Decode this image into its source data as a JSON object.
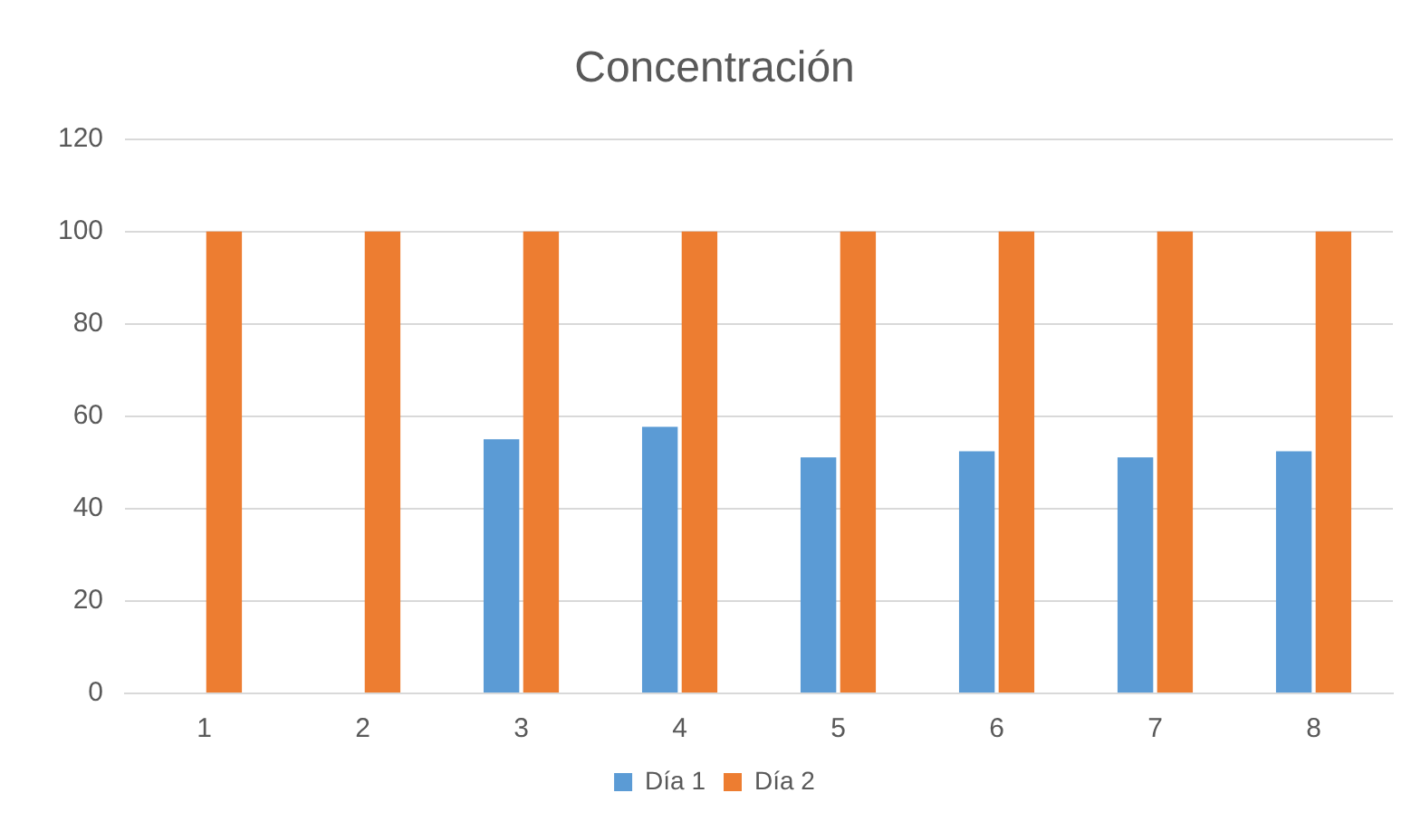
{
  "chart_data": {
    "type": "bar",
    "title": "Concentración",
    "categories": [
      "1",
      "2",
      "3",
      "4",
      "5",
      "6",
      "7",
      "8"
    ],
    "series": [
      {
        "name": "Día 1",
        "color": "#5b9bd5",
        "values": [
          0,
          0,
          55,
          57.7,
          51.1,
          52.4,
          51.1,
          52.4
        ]
      },
      {
        "name": "Día 2",
        "color": "#ed7d31",
        "values": [
          100,
          100,
          100,
          100,
          100,
          100,
          100,
          100
        ]
      }
    ],
    "ylim": [
      0,
      120
    ],
    "yticks": [
      0,
      20,
      40,
      60,
      80,
      100,
      120
    ],
    "grid": "y",
    "legend": "bottom"
  }
}
